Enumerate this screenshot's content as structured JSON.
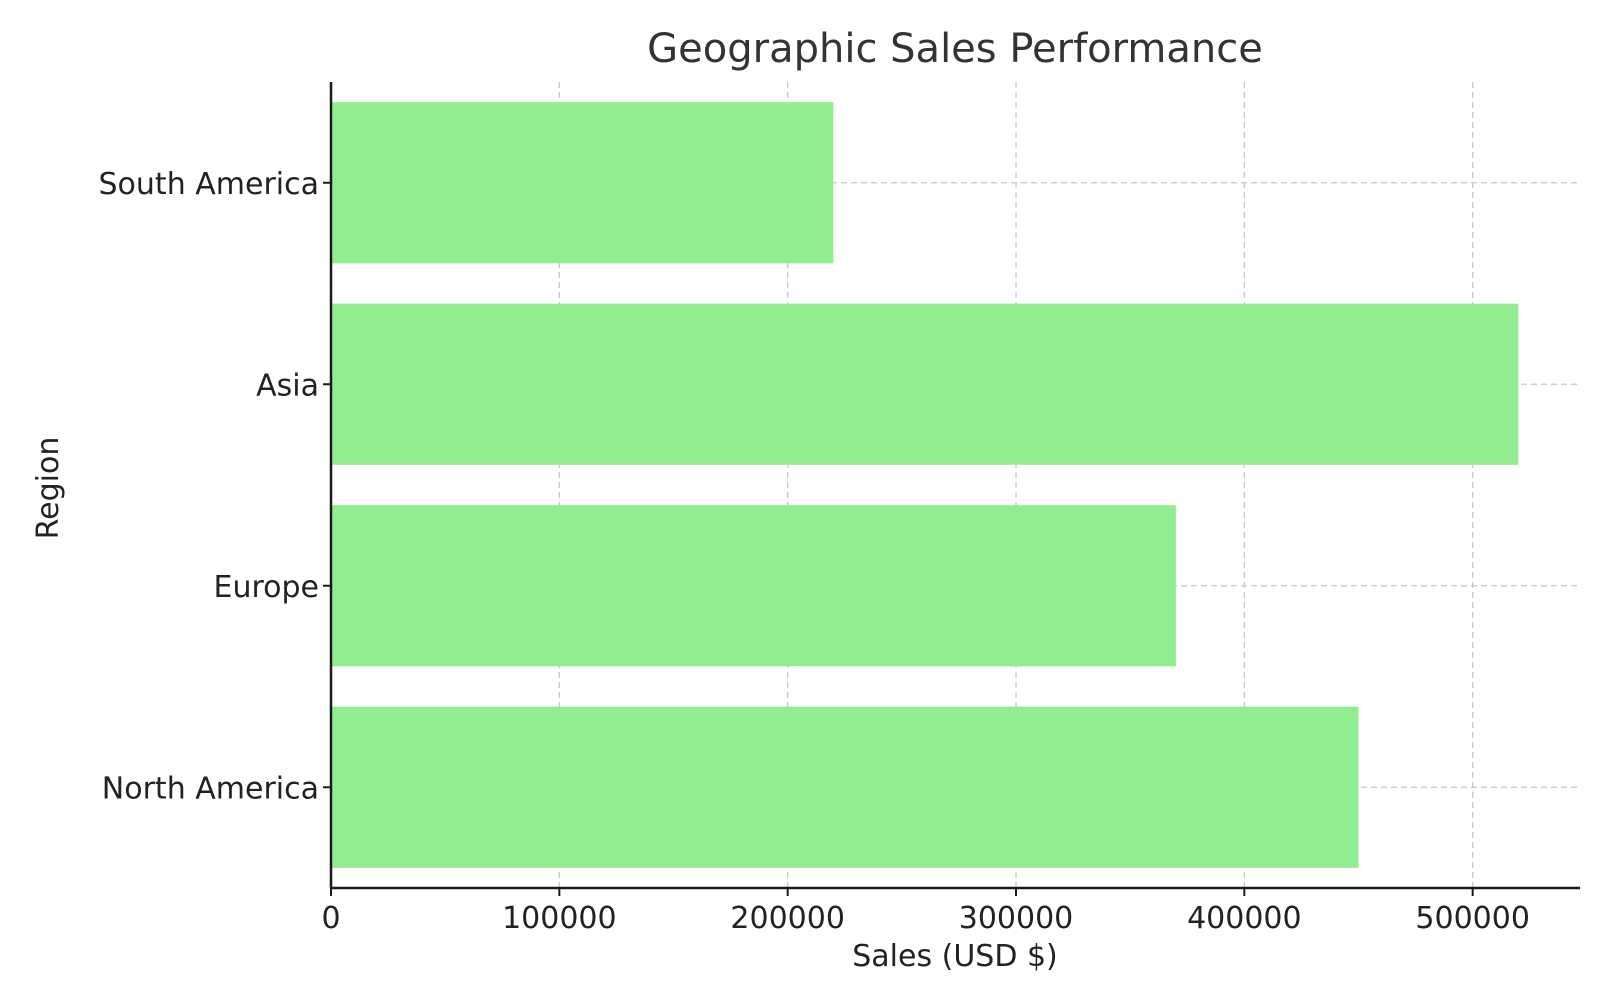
{
  "chart_data": {
    "type": "bar",
    "orientation": "horizontal",
    "title": "Geographic Sales Performance",
    "xlabel": "Sales (USD $)",
    "ylabel": "Region",
    "categories": [
      "North America",
      "Europe",
      "Asia",
      "South America"
    ],
    "values": [
      450000,
      370000,
      520000,
      220000
    ],
    "xlim": [
      0,
      547000
    ],
    "xticks": [
      0,
      100000,
      200000,
      300000,
      400000,
      500000
    ],
    "bar_color": "#90ee90",
    "grid": true,
    "legend": "none"
  }
}
